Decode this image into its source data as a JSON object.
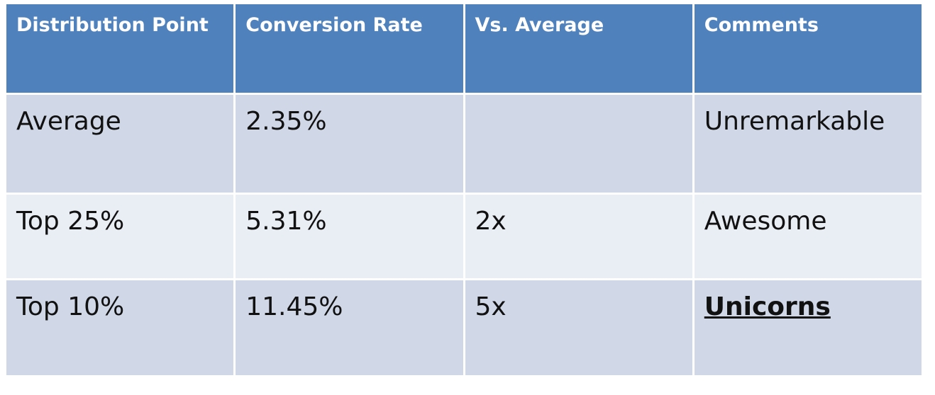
{
  "chart_data": {
    "type": "table",
    "columns": [
      "Distribution Point",
      "Conversion Rate",
      "Vs. Average",
      "Comments"
    ],
    "rows": [
      [
        "Average",
        "2.35%",
        "",
        "Unremarkable"
      ],
      [
        "Top 25%",
        "5.31%",
        "2x",
        "Awesome"
      ],
      [
        "Top 10%",
        "11.45%",
        "5x",
        "Unicorns"
      ]
    ],
    "emphasized_cell": {
      "row": 2,
      "col": 3,
      "style": "bold-underline"
    },
    "colors": {
      "header_bg": "#4f81bd",
      "header_text": "#ffffff",
      "row_band_dark": "#d0d8e8",
      "row_band_light": "#e9edf4",
      "body_text": "#111111"
    }
  }
}
